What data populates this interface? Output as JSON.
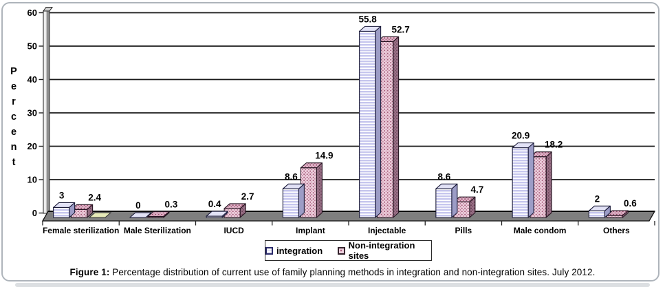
{
  "figure": {
    "caption_prefix": "Figure 1:",
    "caption_body": " Percentage distribution of current use of family planning methods in integration and non-integration sites. July 2012."
  },
  "chart_data": {
    "type": "bar",
    "style": "3d-column-patterned",
    "title": "",
    "xlabel": "",
    "ylabel": "Percent",
    "ylim": [
      0,
      60
    ],
    "yticks": [
      0,
      10,
      20,
      30,
      40,
      50,
      60
    ],
    "grid": true,
    "legend_position": "bottom",
    "categories": [
      "Female sterilization",
      "Male Sterilization",
      "IUCD",
      "Implant",
      "Injectable",
      "Pills",
      "Male condom",
      "Others"
    ],
    "series": [
      {
        "name": "integration",
        "values": [
          3,
          0,
          0.4,
          8.6,
          55.8,
          8.6,
          20.9,
          2
        ],
        "pattern": "horizontal-lines",
        "front_color": "#c6c6ee",
        "line_color": "#ffffff",
        "top_color": "#e2e2f6",
        "side_color": "#9c9cc6",
        "edge_color": "#1a1a38"
      },
      {
        "name": "Non-integration sites",
        "values": [
          2.4,
          0.3,
          2.7,
          14.9,
          52.7,
          4.7,
          18.2,
          0.6
        ],
        "pattern": "dots",
        "front_color": "#eed0de",
        "dot_color": "#a85f7d",
        "top_color": "#e0b6ca",
        "top_dot_color": "#9b4f6e",
        "side_color": "#9a7288",
        "side_dot_color": "#6a4156",
        "edge_color": "#241320"
      }
    ],
    "annotations": {
      "floor_color": "#7f7f7f",
      "floor_highlight_color": "#e6eab8",
      "gridline_color": "#1a1a1a",
      "text_color": "#000000"
    }
  },
  "legend": {
    "items": [
      {
        "label": "integration"
      },
      {
        "label": "Non-integration sites"
      }
    ]
  }
}
